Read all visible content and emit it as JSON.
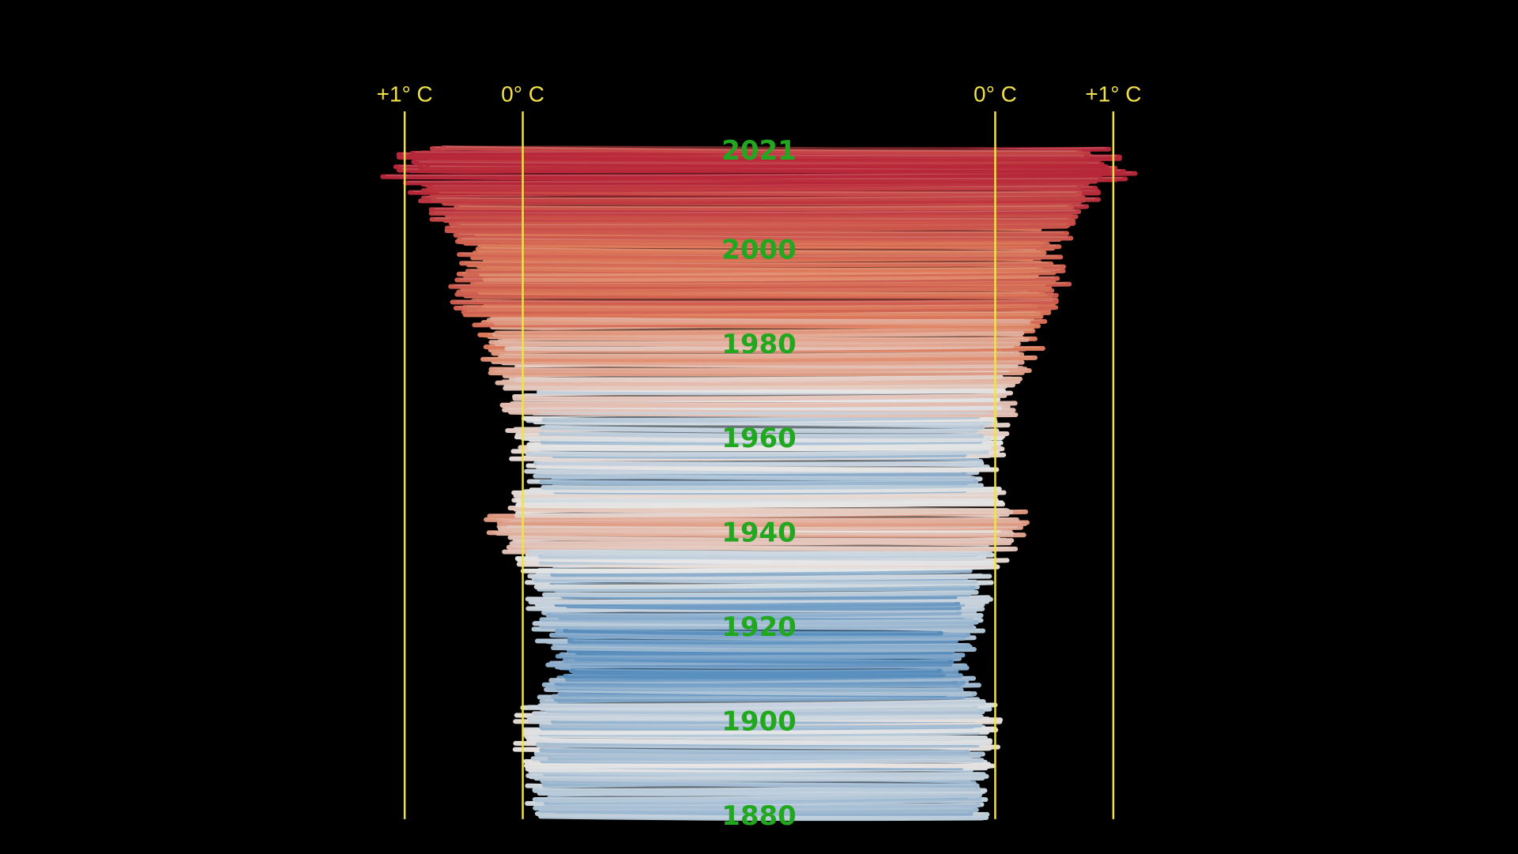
{
  "chart_data": {
    "type": "line",
    "subtype": "temperature-spiral-side-view",
    "axis_labels": [
      "+1° C",
      "0° C",
      "0° C",
      "+1° C"
    ],
    "axis_values": [
      1,
      0,
      0,
      1
    ],
    "year_labels": [
      "2021",
      "2000",
      "1980",
      "1960",
      "1940",
      "1920",
      "1900",
      "1880"
    ],
    "year_range": [
      1880,
      2021
    ],
    "x_range": [
      -0.6,
      1.1
    ],
    "anomaly_points": [
      {
        "year": 1880,
        "value": -0.17
      },
      {
        "year": 1900,
        "value": -0.09
      },
      {
        "year": 1910,
        "value": -0.35
      },
      {
        "year": 1920,
        "value": -0.27
      },
      {
        "year": 1930,
        "value": -0.15
      },
      {
        "year": 1940,
        "value": 0.1
      },
      {
        "year": 1944,
        "value": 0.15
      },
      {
        "year": 1950,
        "value": -0.17
      },
      {
        "year": 1960,
        "value": -0.03
      },
      {
        "year": 1970,
        "value": 0.03
      },
      {
        "year": 1980,
        "value": 0.26
      },
      {
        "year": 1990,
        "value": 0.45
      },
      {
        "year": 2000,
        "value": 0.4
      },
      {
        "year": 2010,
        "value": 0.72
      },
      {
        "year": 2016,
        "value": 1.02
      },
      {
        "year": 2021,
        "value": 0.85
      }
    ],
    "colors": {
      "axis": "#f2e24a",
      "year_label": "#22a81f",
      "cold": "#5a8fbf",
      "neutral": "#e8e8e8",
      "warm": "#e0805e",
      "hot": "#b8283a",
      "background": "#000000"
    }
  }
}
